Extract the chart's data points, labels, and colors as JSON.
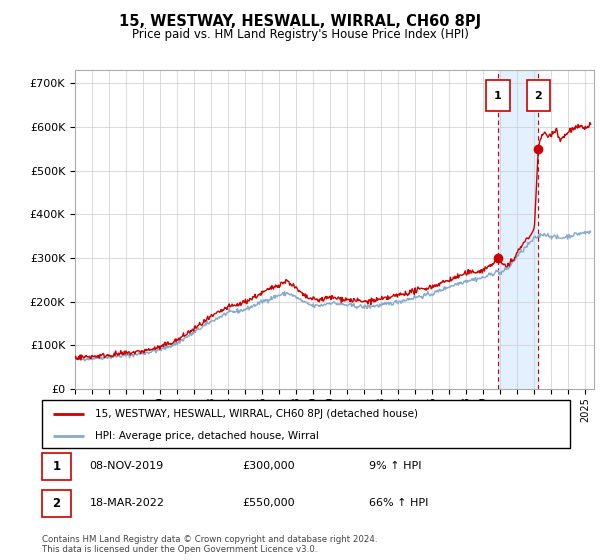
{
  "title": "15, WESTWAY, HESWALL, WIRRAL, CH60 8PJ",
  "subtitle": "Price paid vs. HM Land Registry's House Price Index (HPI)",
  "ylabel_ticks": [
    "£0",
    "£100K",
    "£200K",
    "£300K",
    "£400K",
    "£500K",
    "£600K",
    "£700K"
  ],
  "ytick_values": [
    0,
    100000,
    200000,
    300000,
    400000,
    500000,
    600000,
    700000
  ],
  "ylim": [
    0,
    730000
  ],
  "xlim_start": 1995.0,
  "xlim_end": 2025.5,
  "red_line_color": "#cc0000",
  "blue_line_color": "#88aacc",
  "shaded_region_color": "#ddeeff",
  "grid_color": "#cccccc",
  "transaction1_x": 2019.86,
  "transaction1_y": 300000,
  "transaction2_x": 2022.22,
  "transaction2_y": 550000,
  "legend_line1": "15, WESTWAY, HESWALL, WIRRAL, CH60 8PJ (detached house)",
  "legend_line2": "HPI: Average price, detached house, Wirral",
  "note1_num": "1",
  "note1_date": "08-NOV-2019",
  "note1_price": "£300,000",
  "note1_hpi": "9% ↑ HPI",
  "note2_num": "2",
  "note2_date": "18-MAR-2022",
  "note2_price": "£550,000",
  "note2_hpi": "66% ↑ HPI",
  "footer": "Contains HM Land Registry data © Crown copyright and database right 2024.\nThis data is licensed under the Open Government Licence v3.0.",
  "background_color": "#ffffff"
}
